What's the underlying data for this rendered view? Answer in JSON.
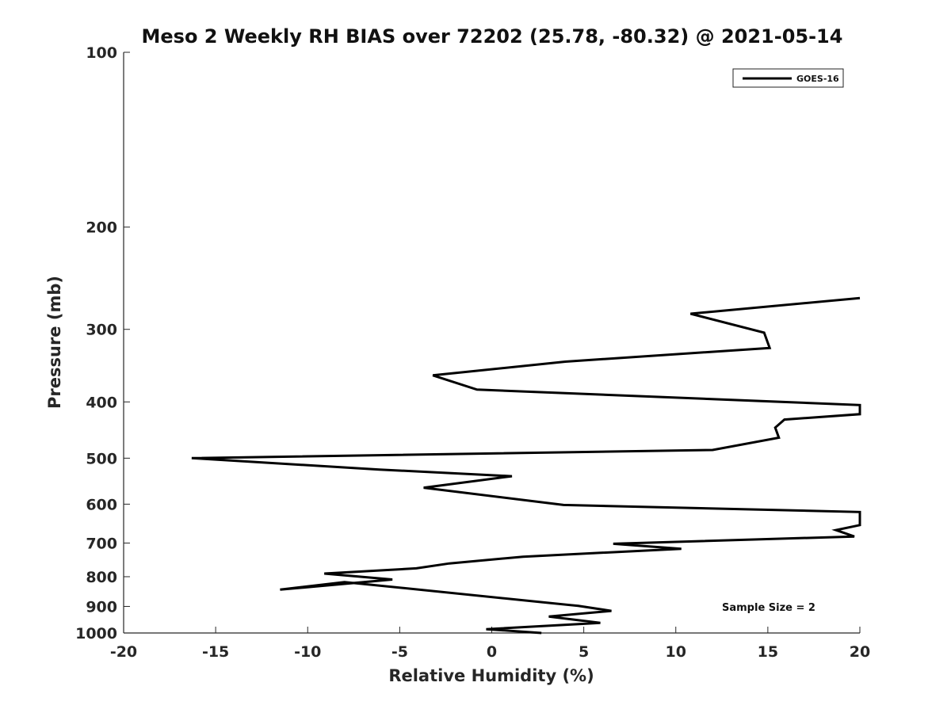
{
  "chart_data": {
    "type": "line",
    "title": "Meso 2 Weekly RH BIAS over 72202 (25.78, -80.32) @ 2021-05-14",
    "xlabel": "Relative Humidity (%)",
    "ylabel": "Pressure (mb)",
    "xlim": [
      -20,
      20
    ],
    "ylim": [
      1000,
      100
    ],
    "y_scale": "log",
    "x_ticks": [
      -20,
      -15,
      -10,
      -5,
      0,
      5,
      10,
      15,
      20
    ],
    "x_tick_labels": [
      "-20",
      "-15",
      "-10",
      "-5",
      "0",
      "5",
      "10",
      "15",
      "20"
    ],
    "y_ticks": [
      100,
      200,
      300,
      400,
      500,
      600,
      700,
      800,
      900,
      1000
    ],
    "y_tick_labels": [
      "100",
      "200",
      "300",
      "400",
      "500",
      "600",
      "700",
      "800",
      "900",
      "1000"
    ],
    "grid": false,
    "legend_position": "top-right",
    "series": [
      {
        "name": "GOES-16",
        "color": "#000000",
        "points": [
          {
            "x": 2.7,
            "y": 1000
          },
          {
            "x": -0.3,
            "y": 985
          },
          {
            "x": 5.9,
            "y": 961
          },
          {
            "x": 3.1,
            "y": 937
          },
          {
            "x": 6.5,
            "y": 916
          },
          {
            "x": 4.7,
            "y": 898
          },
          {
            "x": -8.0,
            "y": 817
          },
          {
            "x": -11.5,
            "y": 842
          },
          {
            "x": -5.4,
            "y": 809
          },
          {
            "x": -9.1,
            "y": 790
          },
          {
            "x": -4.1,
            "y": 774
          },
          {
            "x": -2.3,
            "y": 759
          },
          {
            "x": 1.7,
            "y": 739
          },
          {
            "x": 10.3,
            "y": 716
          },
          {
            "x": 6.6,
            "y": 702
          },
          {
            "x": 19.7,
            "y": 682
          },
          {
            "x": 18.7,
            "y": 665
          },
          {
            "x": 20.0,
            "y": 652
          },
          {
            "x": 20.0,
            "y": 619
          },
          {
            "x": 3.9,
            "y": 602
          },
          {
            "x": -3.7,
            "y": 562
          },
          {
            "x": 1.1,
            "y": 537
          },
          {
            "x": -6.1,
            "y": 523
          },
          {
            "x": -16.3,
            "y": 500
          },
          {
            "x": 12.0,
            "y": 484
          },
          {
            "x": 15.6,
            "y": 461
          },
          {
            "x": 15.4,
            "y": 443
          },
          {
            "x": 15.9,
            "y": 429
          },
          {
            "x": 20.0,
            "y": 420
          },
          {
            "x": 20.0,
            "y": 405
          },
          {
            "x": -0.8,
            "y": 381
          },
          {
            "x": -3.2,
            "y": 360
          },
          {
            "x": 4.0,
            "y": 341
          },
          {
            "x": 15.1,
            "y": 323
          },
          {
            "x": 14.8,
            "y": 304
          },
          {
            "x": 10.8,
            "y": 282
          },
          {
            "x": 20.0,
            "y": 265
          }
        ]
      }
    ],
    "annotations": [
      "Sample Size = 2"
    ]
  }
}
